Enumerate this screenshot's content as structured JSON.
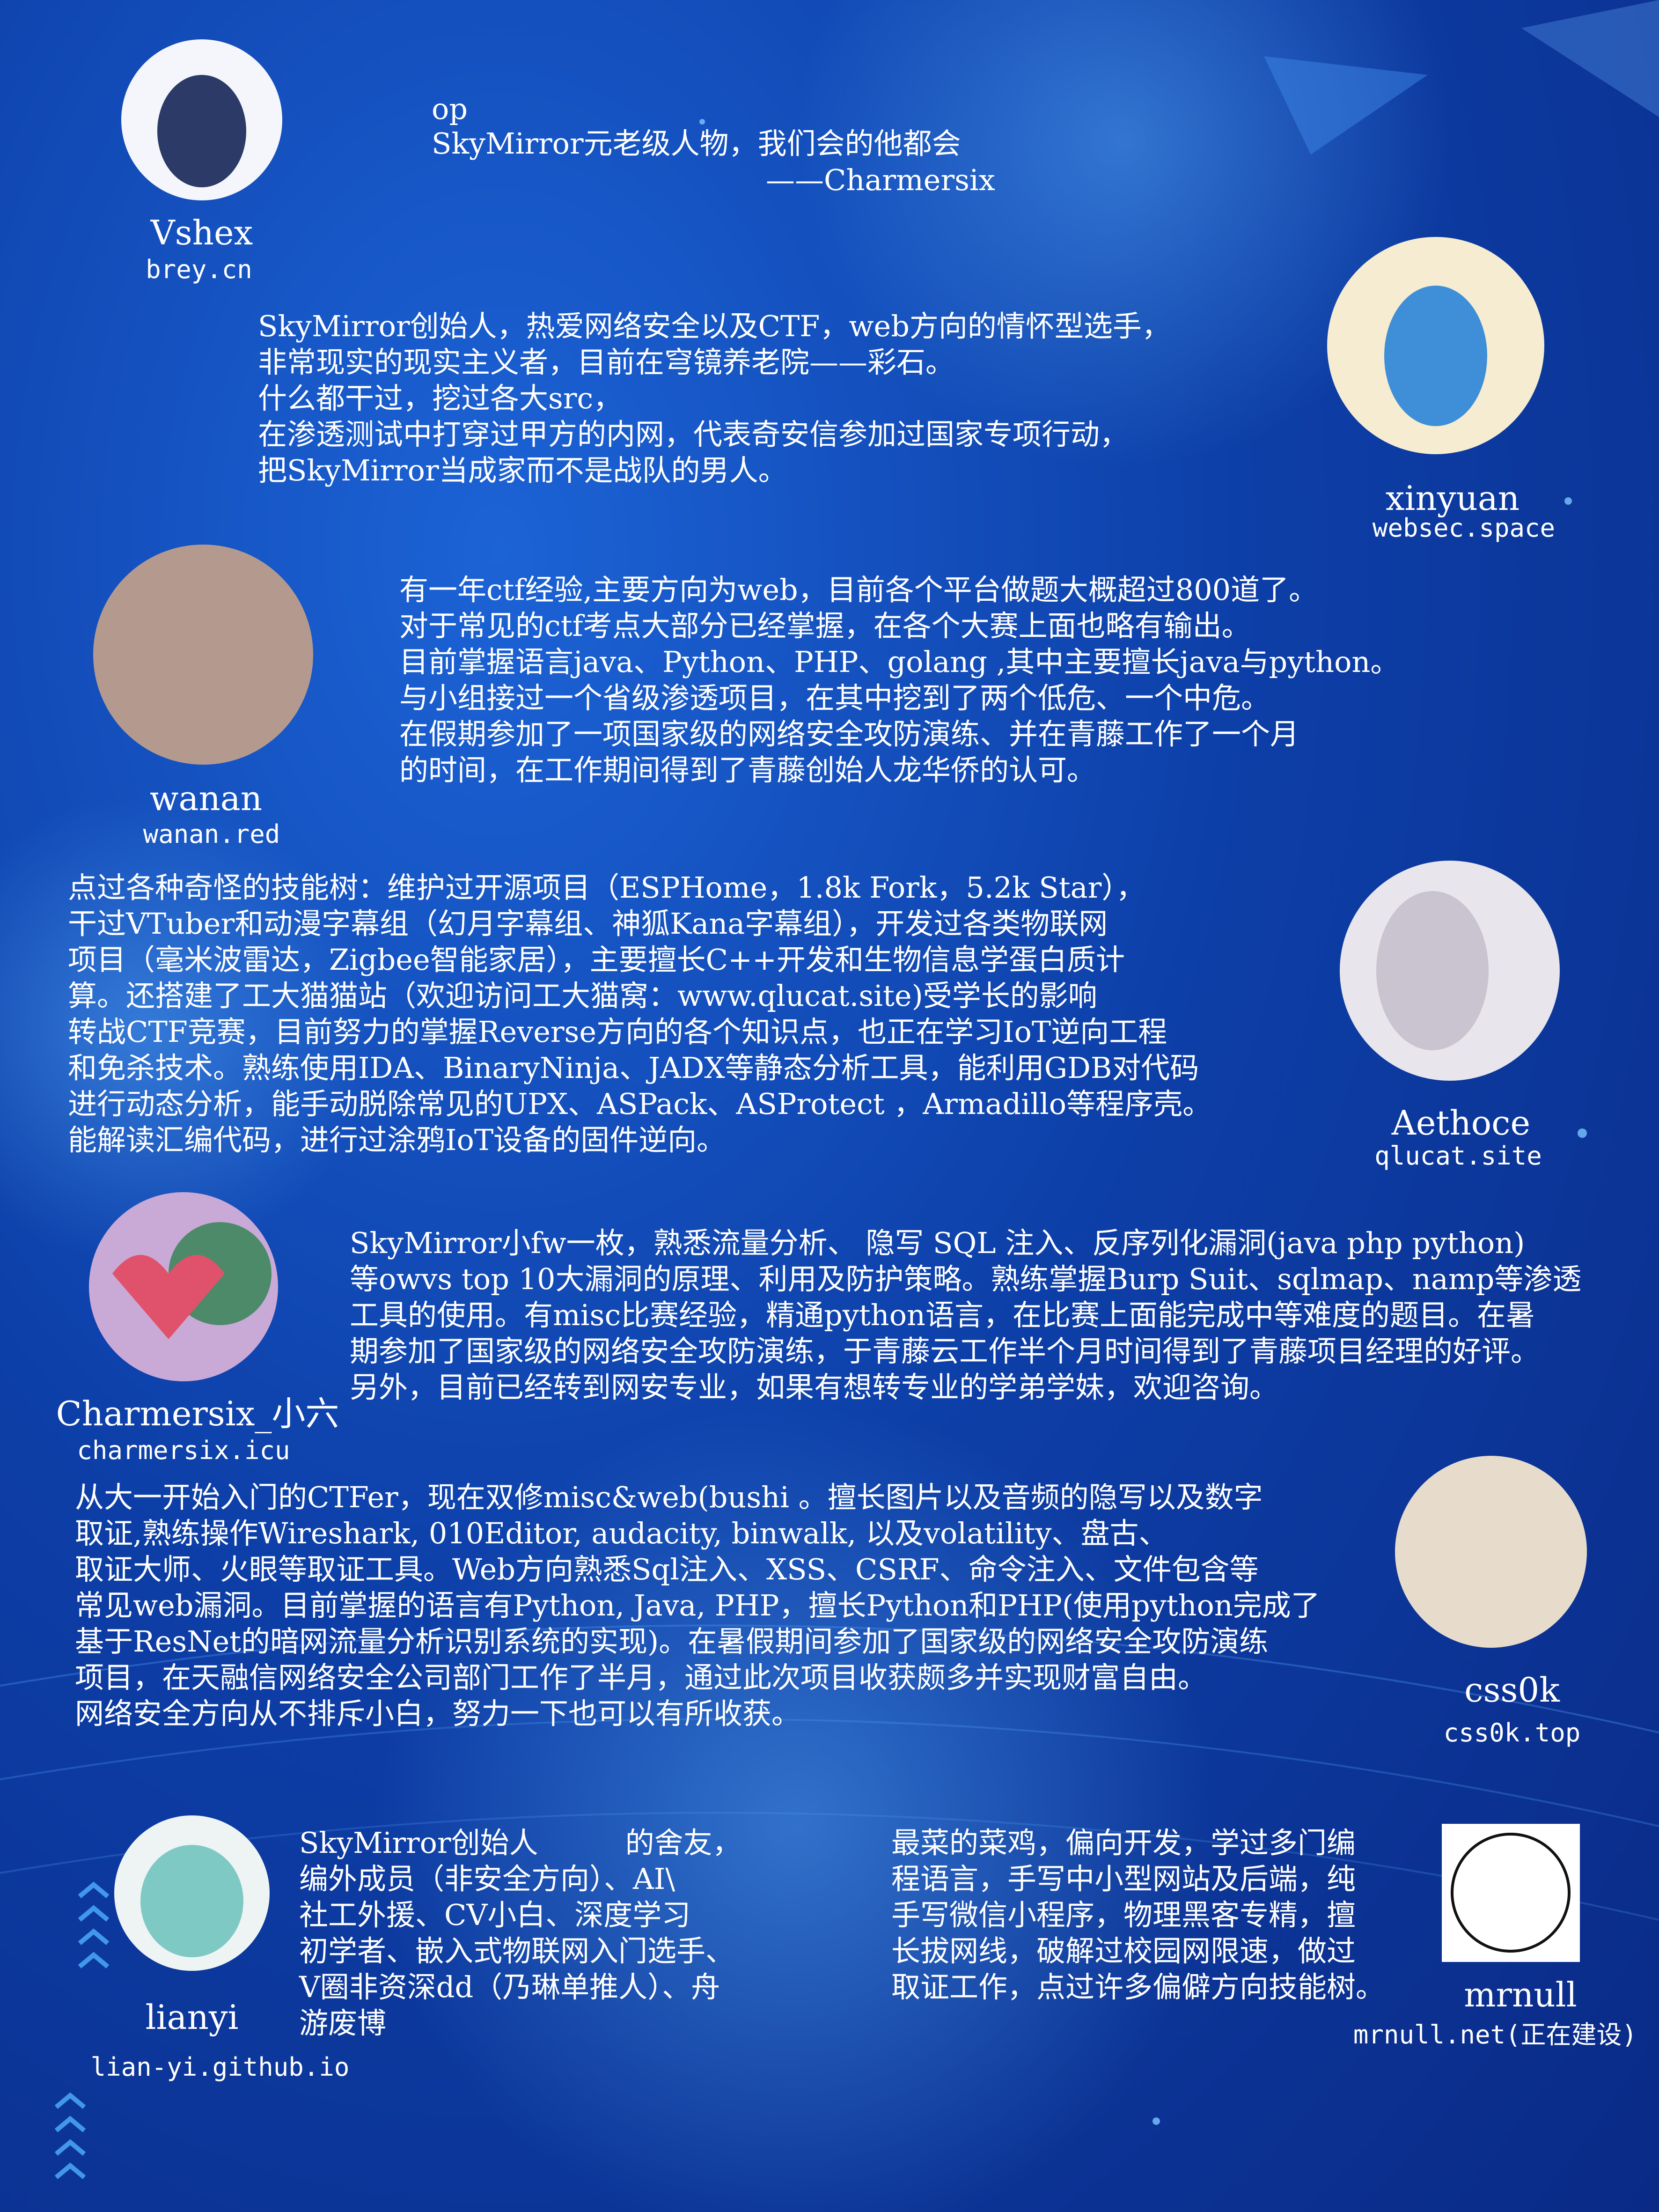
{
  "quote": [
    "op",
    "SkyMirror元老级人物，我们会的他都会",
    "——Charmersix"
  ],
  "members": [
    {
      "name": "Vshex",
      "site": "brey.cn",
      "bio": [
        "SkyMirror创始人，热爱网络安全以及CTF，web方向的情怀型选手，",
        "非常现实的现实主义者，目前在穹镜养老院——彩石。",
        "什么都干过，挖过各大src，",
        "在渗透测试中打穿过甲方的内网，代表奇安信参加过国家专项行动，",
        "把SkyMirror当成家而不是战队的男人。"
      ]
    },
    {
      "name": "xinyuan",
      "site": "websec.space",
      "bio": []
    },
    {
      "name": "wanan",
      "site": "wanan.red",
      "bio": [
        "有一年ctf经验,主要方向为web，目前各个平台做题大概超过800道了。",
        "对于常见的ctf考点大部分已经掌握，在各个大赛上面也略有输出。",
        "目前掌握语言java、Python、PHP、golang ,其中主要擅长java与python。",
        "与小组接过一个省级渗透项目，在其中挖到了两个低危、一个中危。",
        "在假期参加了一项国家级的网络安全攻防演练、并在青藤工作了一个月",
        "的时间，在工作期间得到了青藤创始人龙华侨的认可。"
      ]
    },
    {
      "name": "Aethoce",
      "site": "qlucat.site",
      "bio": [
        "点过各种奇怪的技能树：维护过开源项目（ESPHome，1.8k Fork，5.2k Star），",
        "干过VTuber和动漫字幕组（幻月字幕组、神狐Kana字幕组），开发过各类物联网",
        "项目（毫米波雷达，Zigbee智能家居），主要擅长C++开发和生物信息学蛋白质计",
        "算。还搭建了工大猫猫站（欢迎访问工大猫窝：www.qlucat.site)受学长的影响",
        "转战CTF竞赛，目前努力的掌握Reverse方向的各个知识点，也正在学习IoT逆向工程",
        "和免杀技术。熟练使用IDA、BinaryNinja、JADX等静态分析工具，能利用GDB对代码",
        "进行动态分析，能手动脱除常见的UPX、ASPack、ASProtect ，Armadillo等程序壳。",
        "能解读汇编代码，进行过涂鸦IoT设备的固件逆向。"
      ]
    },
    {
      "name": "Charmersix_小六",
      "site": "charmersix.icu",
      "bio": [
        "SkyMirror小fw一枚，熟悉流量分析、 隐写 SQL 注入、反序列化漏洞(java php python)",
        "等owvs top 10大漏洞的原理、利用及防护策略。熟练掌握Burp Suit、sqlmap、namp等渗透",
        "工具的使用。有misc比赛经验，精通python语言，在比赛上面能完成中等难度的题目。在暑",
        "期参加了国家级的网络安全攻防演练，于青藤云工作半个月时间得到了青藤项目经理的好评。",
        "另外，目前已经转到网安专业，如果有想转专业的学弟学妹，欢迎咨询。"
      ]
    },
    {
      "name": "css0k",
      "site": "css0k.top",
      "bio": [
        "从大一开始入门的CTFer，现在双修misc&web(bushi 。擅长图片以及音频的隐写以及数字",
        "取证,熟练操作Wireshark, 010Editor, audacity, binwalk, 以及volatility、盘古、",
        "取证大师、火眼等取证工具。Web方向熟悉Sql注入、XSS、CSRF、命令注入、文件包含等",
        "常见web漏洞。目前掌握的语言有Python, Java, PHP，擅长Python和PHP(使用python完成了",
        "基于ResNet的暗网流量分析识别系统的实现)。在暑假期间参加了国家级的网络安全攻防演练",
        "项目，在天融信网络安全公司部门工作了半月，通过此次项目收获颇多并实现财富自由。",
        "网络安全方向从不排斥小白，努力一下也可以有所收获。"
      ]
    },
    {
      "name": "lianyi",
      "site": "lian-yi.github.io",
      "bio": [
        "SkyMirror创始人　　　的舍友，",
        "编外成员（非安全方向）、AI\\",
        "社工外援、CV小白、深度学习",
        "初学者、嵌入式物联网入门选手、",
        "V圈非资深dd（乃琳单推人）、舟",
        "游废博"
      ]
    },
    {
      "name": "mrnull",
      "site": "mrnull.net(正在建设)",
      "bio": [
        "最菜的菜鸡，偏向开发，学过多门编",
        "程语言，手写中小型网站及后端，纯",
        "手写微信小程序，物理黑客专精，擅",
        "长拔网线，破解过校园网限速，做过",
        "取证工作，点过许多偏僻方向技能树。"
      ]
    }
  ]
}
